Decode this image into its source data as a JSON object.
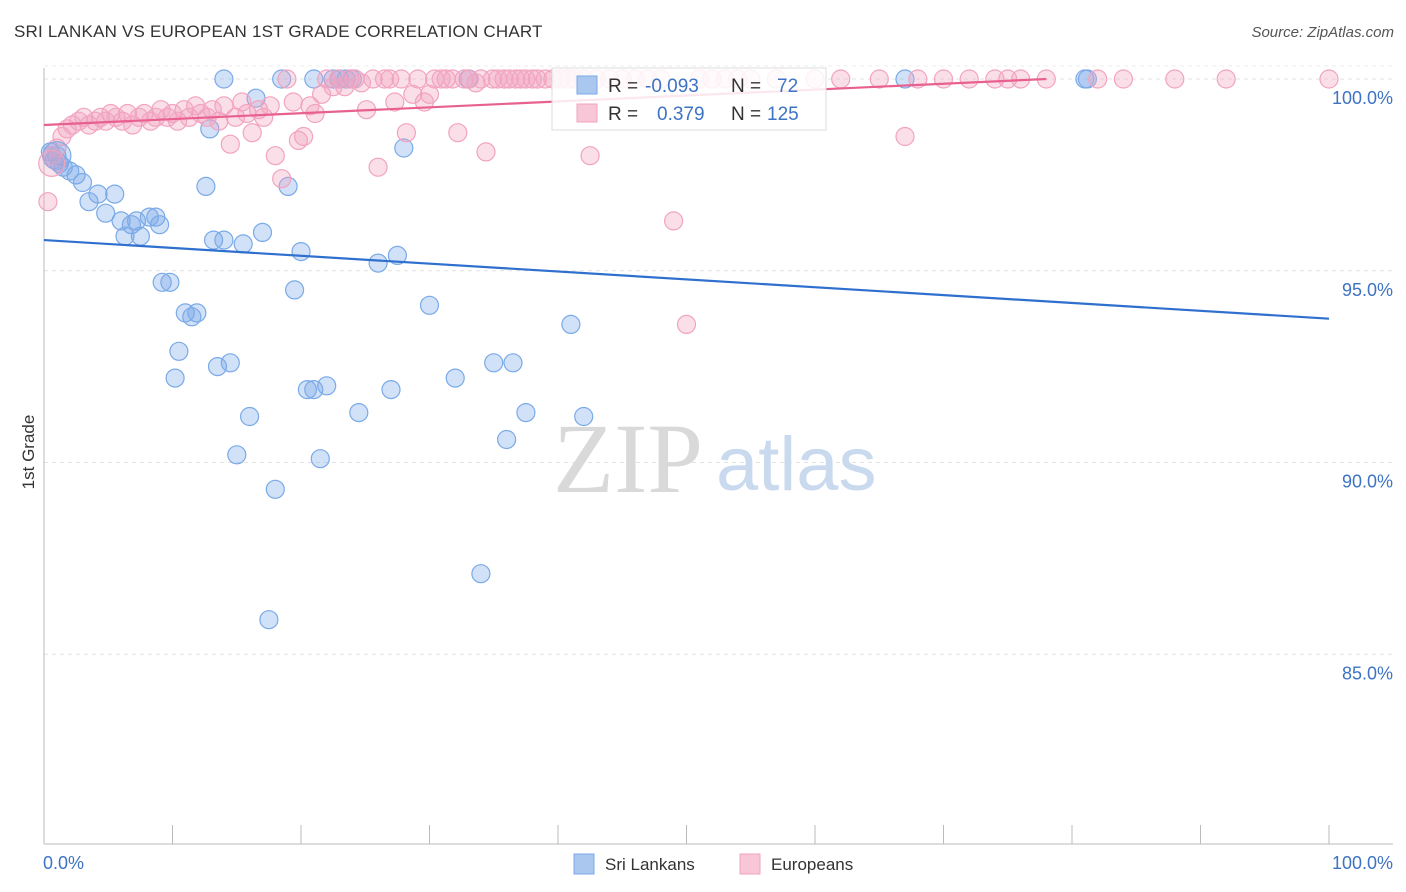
{
  "chart_data": {
    "type": "scatter",
    "title": "SRI LANKAN VS EUROPEAN 1ST GRADE CORRELATION CHART",
    "source": "Source: ZipAtlas.com",
    "xlabel": "",
    "ylabel": "1st Grade",
    "xlim": [
      0,
      100
    ],
    "ylim": [
      80.5,
      100.8
    ],
    "x_tick_labels": {
      "left": "0.0%",
      "right": "100.0%"
    },
    "y_ticks": [
      {
        "value": 100.0,
        "label": "100.0%"
      },
      {
        "value": 95.0,
        "label": "95.0%"
      },
      {
        "value": 90.0,
        "label": "90.0%"
      },
      {
        "value": 85.0,
        "label": "85.0%"
      }
    ],
    "watermark": {
      "zip": "ZIP",
      "atlas": "atlas"
    },
    "stats": {
      "r_label": "R =",
      "n_label": "N =",
      "rows": [
        {
          "series": "Sri Lankans",
          "r": "-0.093",
          "n": "72"
        },
        {
          "series": "Europeans",
          "r": "0.379",
          "n": "125"
        }
      ]
    },
    "series": [
      {
        "name": "Sri Lankans",
        "color": "#7aaae8",
        "line_color": "#2f6fce",
        "trend": {
          "x": [
            0,
            100
          ],
          "y": [
            95.8,
            93.75
          ]
        },
        "points": [
          [
            0.5,
            98.1
          ],
          [
            0.8,
            97.9
          ],
          [
            1.0,
            98.0
          ],
          [
            1.2,
            97.8
          ],
          [
            1.5,
            97.7
          ],
          [
            2.0,
            97.6
          ],
          [
            2.5,
            97.5
          ],
          [
            3.0,
            97.3
          ],
          [
            3.5,
            96.8
          ],
          [
            4.2,
            97.0
          ],
          [
            4.8,
            96.5
          ],
          [
            5.5,
            97.0
          ],
          [
            6.0,
            96.3
          ],
          [
            6.3,
            95.9
          ],
          [
            6.8,
            96.2
          ],
          [
            7.2,
            96.3
          ],
          [
            7.5,
            95.9
          ],
          [
            8.2,
            96.4
          ],
          [
            8.7,
            96.4
          ],
          [
            9.0,
            96.2
          ],
          [
            9.2,
            94.7
          ],
          [
            9.8,
            94.7
          ],
          [
            10.5,
            92.9
          ],
          [
            10.2,
            92.2
          ],
          [
            11.0,
            93.9
          ],
          [
            11.5,
            93.8
          ],
          [
            11.9,
            93.9
          ],
          [
            12.6,
            97.2
          ],
          [
            12.9,
            98.7
          ],
          [
            13.2,
            95.8
          ],
          [
            13.5,
            92.5
          ],
          [
            14.0,
            95.8
          ],
          [
            14.5,
            92.6
          ],
          [
            15.0,
            90.2
          ],
          [
            15.5,
            95.7
          ],
          [
            16.0,
            91.2
          ],
          [
            16.5,
            99.5
          ],
          [
            17.0,
            96.0
          ],
          [
            17.5,
            85.9
          ],
          [
            18.0,
            89.3
          ],
          [
            18.5,
            100.0
          ],
          [
            19.0,
            97.2
          ],
          [
            19.5,
            94.5
          ],
          [
            20.0,
            95.5
          ],
          [
            20.5,
            91.9
          ],
          [
            21.0,
            91.9
          ],
          [
            21.5,
            90.1
          ],
          [
            22.0,
            92.0
          ],
          [
            22.5,
            100.0
          ],
          [
            23.0,
            100.0
          ],
          [
            23.5,
            100.0
          ],
          [
            24.0,
            100.0
          ],
          [
            24.5,
            91.3
          ],
          [
            26.0,
            95.2
          ],
          [
            27.0,
            91.9
          ],
          [
            27.5,
            95.4
          ],
          [
            28.0,
            98.2
          ],
          [
            30.0,
            94.1
          ],
          [
            32.0,
            92.2
          ],
          [
            33.0,
            100.0
          ],
          [
            34.0,
            87.1
          ],
          [
            35.0,
            92.6
          ],
          [
            36.0,
            90.6
          ],
          [
            36.5,
            92.6
          ],
          [
            37.5,
            91.3
          ],
          [
            41.0,
            93.6
          ],
          [
            42.0,
            91.2
          ],
          [
            14.0,
            100.0
          ],
          [
            21.0,
            100.0
          ],
          [
            67.0,
            100.0
          ],
          [
            81.0,
            100.0
          ],
          [
            81.2,
            100.0
          ]
        ]
      },
      {
        "name": "Europeans",
        "color": "#f2a3bf",
        "line_color": "#e8608f",
        "trend": {
          "x": [
            0,
            78
          ],
          "y": [
            98.8,
            100.0
          ]
        },
        "points": [
          [
            0.3,
            96.8
          ],
          [
            0.6,
            98.0
          ],
          [
            1.0,
            98.2
          ],
          [
            1.4,
            98.5
          ],
          [
            1.8,
            98.7
          ],
          [
            2.2,
            98.8
          ],
          [
            2.7,
            98.9
          ],
          [
            3.1,
            99.0
          ],
          [
            3.5,
            98.8
          ],
          [
            4.0,
            98.9
          ],
          [
            4.4,
            99.0
          ],
          [
            4.8,
            98.9
          ],
          [
            5.2,
            99.1
          ],
          [
            5.6,
            99.0
          ],
          [
            6.1,
            98.9
          ],
          [
            6.5,
            99.1
          ],
          [
            6.9,
            98.8
          ],
          [
            7.4,
            99.0
          ],
          [
            7.8,
            99.1
          ],
          [
            8.3,
            98.9
          ],
          [
            8.7,
            99.0
          ],
          [
            9.1,
            99.2
          ],
          [
            9.6,
            99.0
          ],
          [
            10.0,
            99.1
          ],
          [
            10.4,
            98.9
          ],
          [
            10.9,
            99.2
          ],
          [
            11.3,
            99.0
          ],
          [
            11.8,
            99.3
          ],
          [
            12.2,
            99.1
          ],
          [
            12.7,
            99.0
          ],
          [
            13.1,
            99.2
          ],
          [
            13.6,
            98.9
          ],
          [
            14.0,
            99.3
          ],
          [
            14.5,
            98.3
          ],
          [
            14.9,
            99.0
          ],
          [
            15.4,
            99.4
          ],
          [
            15.8,
            99.1
          ],
          [
            16.2,
            98.6
          ],
          [
            16.7,
            99.2
          ],
          [
            17.1,
            99.0
          ],
          [
            17.6,
            99.3
          ],
          [
            18.0,
            98.0
          ],
          [
            18.5,
            97.4
          ],
          [
            18.9,
            100.0
          ],
          [
            19.4,
            99.4
          ],
          [
            19.8,
            98.4
          ],
          [
            20.2,
            98.5
          ],
          [
            20.7,
            99.3
          ],
          [
            21.1,
            99.1
          ],
          [
            21.6,
            99.6
          ],
          [
            22.0,
            100.0
          ],
          [
            22.5,
            99.8
          ],
          [
            22.9,
            100.0
          ],
          [
            23.4,
            99.8
          ],
          [
            23.8,
            100.0
          ],
          [
            24.2,
            100.0
          ],
          [
            24.7,
            99.9
          ],
          [
            25.1,
            99.2
          ],
          [
            25.6,
            100.0
          ],
          [
            26.0,
            97.7
          ],
          [
            26.5,
            100.0
          ],
          [
            26.9,
            100.0
          ],
          [
            27.3,
            99.4
          ],
          [
            27.8,
            100.0
          ],
          [
            28.2,
            98.6
          ],
          [
            28.7,
            99.6
          ],
          [
            29.1,
            100.0
          ],
          [
            29.6,
            99.4
          ],
          [
            30.0,
            99.6
          ],
          [
            30.4,
            100.0
          ],
          [
            30.9,
            100.0
          ],
          [
            31.3,
            100.0
          ],
          [
            31.8,
            100.0
          ],
          [
            32.2,
            98.6
          ],
          [
            32.7,
            100.0
          ],
          [
            33.1,
            100.0
          ],
          [
            33.6,
            99.9
          ],
          [
            34.0,
            100.0
          ],
          [
            34.4,
            98.1
          ],
          [
            34.9,
            100.0
          ],
          [
            35.3,
            100.0
          ],
          [
            35.8,
            100.0
          ],
          [
            36.2,
            100.0
          ],
          [
            36.7,
            100.0
          ],
          [
            37.1,
            100.0
          ],
          [
            37.5,
            100.0
          ],
          [
            38.0,
            100.0
          ],
          [
            38.4,
            100.0
          ],
          [
            39.0,
            100.0
          ],
          [
            39.6,
            100.0
          ],
          [
            40.2,
            100.0
          ],
          [
            40.8,
            100.0
          ],
          [
            41.3,
            100.0
          ],
          [
            42.0,
            100.0
          ],
          [
            42.5,
            98.0
          ],
          [
            43.0,
            100.0
          ],
          [
            44.0,
            100.0
          ],
          [
            45.0,
            100.0
          ],
          [
            46.0,
            100.0
          ],
          [
            47.0,
            100.0
          ],
          [
            48.0,
            100.0
          ],
          [
            49.0,
            96.3
          ],
          [
            50.0,
            93.6
          ],
          [
            51.0,
            100.0
          ],
          [
            52.0,
            100.0
          ],
          [
            53.0,
            100.0
          ],
          [
            54.0,
            100.0
          ],
          [
            55.0,
            100.0
          ],
          [
            57.0,
            100.0
          ],
          [
            60.0,
            100.0
          ],
          [
            62.0,
            100.0
          ],
          [
            65.0,
            100.0
          ],
          [
            67.0,
            98.5
          ],
          [
            68.0,
            100.0
          ],
          [
            70.0,
            100.0
          ],
          [
            72.0,
            100.0
          ],
          [
            74.0,
            100.0
          ],
          [
            75.0,
            100.0
          ],
          [
            76.0,
            100.0
          ],
          [
            78.0,
            100.0
          ],
          [
            82.0,
            100.0
          ],
          [
            84.0,
            100.0
          ],
          [
            88.0,
            100.0
          ],
          [
            92.0,
            100.0
          ],
          [
            100.0,
            100.0
          ]
        ]
      }
    ]
  }
}
